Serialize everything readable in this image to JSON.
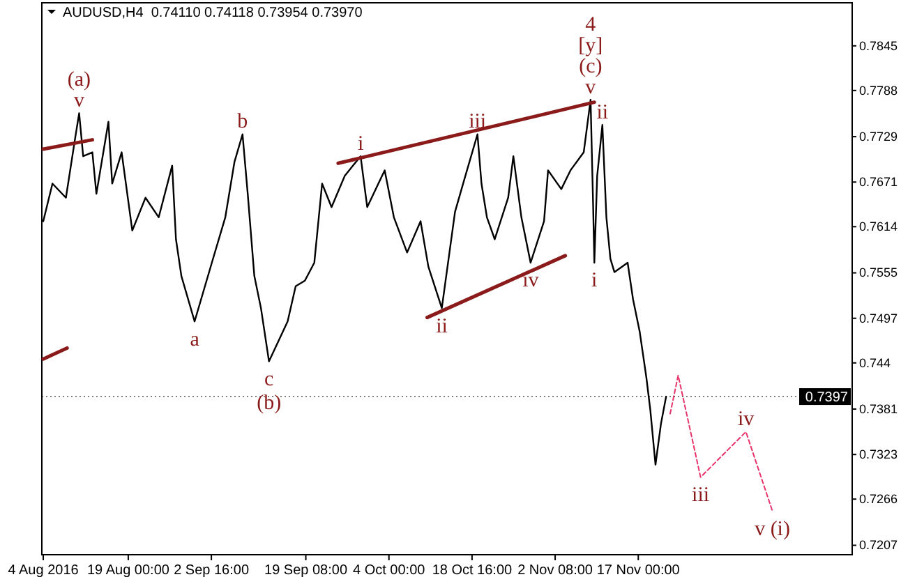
{
  "chart_data": {
    "type": "line",
    "title": "AUDUSD,H4  0.74110 0.74118 0.73954 0.73970",
    "xlim": [
      "2016-08-03T18:00",
      "2016-12-24T18:00"
    ],
    "xticks": [
      {
        "value": "2016-08-04T00:00",
        "label": "4 Aug 2016"
      },
      {
        "value": "2016-08-19T00:00",
        "label": "19 Aug 00:00"
      },
      {
        "value": "2016-09-02T16:00",
        "label": "2 Sep 16:00"
      },
      {
        "value": "2016-09-19T08:00",
        "label": "19 Sep 08:00"
      },
      {
        "value": "2016-10-04T00:00",
        "label": "4 Oct 00:00"
      },
      {
        "value": "2016-10-18T16:00",
        "label": "18 Oct 16:00"
      },
      {
        "value": "2016-11-02T08:00",
        "label": "2 Nov 08:00"
      },
      {
        "value": "2016-11-17T00:00",
        "label": "17 Nov 00:00"
      }
    ],
    "ylim": [
      0.7195,
      0.79
    ],
    "yticks": [
      0.7207,
      0.7266,
      0.7323,
      0.7381,
      0.744,
      0.7497,
      0.7555,
      0.7614,
      0.7671,
      0.7729,
      0.7788,
      0.7845
    ],
    "grid": false,
    "marker": "none",
    "ref_lines": [
      {
        "axis": "y",
        "value": 0.7397,
        "label": "0.7397",
        "color": "#000000",
        "line_style": "dotted"
      }
    ],
    "series": [
      {
        "color": "#000000",
        "x": [
          "2016-08-04T00:00",
          "2016-08-05T15:00",
          "2016-08-08T00:00",
          "2016-08-09T15:00",
          "2016-08-10T08:00",
          "2016-08-11T01:00",
          "2016-08-12T16:00",
          "2016-08-13T09:00",
          "2016-08-15T12:00",
          "2016-08-16T04:00",
          "2016-08-17T20:00",
          "2016-08-19T17:00",
          "2016-08-22T01:00",
          "2016-08-24T09:00",
          "2016-08-26T18:00",
          "2016-08-27T10:00",
          "2016-08-28T09:00",
          "2016-08-30T17:00",
          "2016-09-02T18:00",
          "2016-09-05T03:00",
          "2016-09-06T18:00",
          "2016-09-08T04:00",
          "2016-09-09T02:00",
          "2016-09-10T06:00",
          "2016-09-11T10:00",
          "2016-09-12T20:00",
          "2016-09-16T03:00",
          "2016-09-17T13:00",
          "2016-09-19T04:00",
          "2016-09-20T20:00",
          "2016-09-22T05:00",
          "2016-09-23T21:00",
          "2016-09-26T05:00",
          "2016-09-29T00:00",
          "2016-09-30T04:00",
          "2016-10-03T06:00",
          "2016-10-04T21:00",
          "2016-10-07T05:00",
          "2016-10-09T14:00",
          "2016-10-10T23:00",
          "2016-10-13T08:00",
          "2016-10-15T16:00",
          "2016-10-17T07:00",
          "2016-10-19T15:00",
          "2016-10-20T08:00",
          "2016-10-21T07:00",
          "2016-10-22T16:00",
          "2016-10-25T01:00",
          "2016-10-25T23:00",
          "2016-10-27T09:00",
          "2016-10-29T00:00",
          "2016-10-31T09:00",
          "2016-11-01T02:00",
          "2016-11-03T10:00",
          "2016-11-05T01:00",
          "2016-11-07T09:00",
          "2016-11-08T14:00",
          "2016-11-09T01:00",
          "2016-11-09T06:00",
          "2016-11-09T18:00",
          "2016-11-10T16:00",
          "2016-11-11T09:00",
          "2016-11-12T02:00",
          "2016-11-12T19:00",
          "2016-11-15T03:00",
          "2016-11-16T02:00",
          "2016-11-17T06:00",
          "2016-11-18T10:00",
          "2016-11-19T03:00",
          "2016-11-20T01:00",
          "2016-11-21T00:00",
          "2016-11-21T22:00"
        ],
        "values": [
          0.7621,
          0.7669,
          0.7651,
          0.7727,
          0.7759,
          0.7704,
          0.7709,
          0.7656,
          0.7748,
          0.7669,
          0.7709,
          0.7609,
          0.7651,
          0.7626,
          0.7692,
          0.7598,
          0.7551,
          0.7493,
          0.7568,
          0.7626,
          0.7697,
          0.7732,
          0.7656,
          0.7551,
          0.751,
          0.7442,
          0.7493,
          0.7538,
          0.7545,
          0.7568,
          0.7669,
          0.7639,
          0.7679,
          0.7704,
          0.7639,
          0.7686,
          0.7626,
          0.7581,
          0.7621,
          0.7563,
          0.751,
          0.7633,
          0.7674,
          0.7732,
          0.7669,
          0.7626,
          0.7598,
          0.7651,
          0.7704,
          0.7626,
          0.7568,
          0.7621,
          0.7686,
          0.7662,
          0.7686,
          0.7709,
          0.7776,
          0.7639,
          0.7568,
          0.7679,
          0.7744,
          0.7626,
          0.7573,
          0.7556,
          0.7568,
          0.7521,
          0.748,
          0.7422,
          0.738,
          0.731,
          0.7362,
          0.7397
        ]
      },
      {
        "color": "#8b1a1a",
        "x": [
          "2016-08-04T00:00",
          "2016-08-12T16:00"
        ],
        "values": [
          0.7713,
          0.7725
        ]
      },
      {
        "color": "#8b1a1a",
        "x": [
          "2016-08-04T00:00",
          "2016-08-08T05:00"
        ],
        "values": [
          0.7445,
          0.7459
        ]
      },
      {
        "color": "#8b1a1a",
        "x": [
          "2016-09-25T01:00",
          "2016-11-09T06:00"
        ],
        "values": [
          0.7695,
          0.7773
        ]
      },
      {
        "color": "#8b1a1a",
        "x": [
          "2016-10-10T18:00",
          "2016-11-04T03:00"
        ],
        "values": [
          0.7498,
          0.7577
        ]
      },
      {
        "color": "#e8336b",
        "line_style": "dashed",
        "x": [
          "2016-11-22T15:00",
          "2016-11-24T01:00",
          "2016-11-28T00:00",
          "2016-12-06T00:00",
          "2016-12-10T16:00"
        ],
        "values": [
          0.7375,
          0.7424,
          0.7294,
          0.7352,
          0.7251
        ]
      }
    ],
    "annotations": [
      {
        "text": "(a)",
        "x": "2016-08-10T08:00",
        "y": 0.7759
      },
      {
        "text": "v",
        "x": "2016-08-10T08:00",
        "y": 0.7759
      },
      {
        "text": "a",
        "x": "2016-08-30T17:00",
        "y": 0.7493
      },
      {
        "text": "b",
        "x": "2016-09-08T04:00",
        "y": 0.7732
      },
      {
        "text": "c",
        "x": "2016-09-12T20:00",
        "y": 0.7442
      },
      {
        "text": "(b)",
        "x": "2016-09-12T20:00",
        "y": 0.7442
      },
      {
        "text": "i",
        "x": "2016-09-29T00:00",
        "y": 0.7704
      },
      {
        "text": "ii",
        "x": "2016-10-13T08:00",
        "y": 0.751
      },
      {
        "text": "iii",
        "x": "2016-10-19T15:00",
        "y": 0.7732
      },
      {
        "text": "iv",
        "x": "2016-10-29T00:00",
        "y": 0.7568
      },
      "4",
      "[y]",
      {
        "text": "(c)",
        "x": "2016-11-08T14:00",
        "y": 0.7776
      },
      {
        "text": "v",
        "x": "2016-11-08T14:00",
        "y": 0.7776
      },
      {
        "text": "ii",
        "x": "2016-11-10T16:00",
        "y": 0.7744
      },
      {
        "text": "i",
        "x": "2016-11-09T06:00",
        "y": 0.7568
      },
      {
        "text": "iii",
        "x": "2016-11-28T00:00",
        "y": 0.7294
      },
      {
        "text": "iv",
        "x": "2016-12-06T00:00",
        "y": 0.7352
      },
      {
        "text": "v (i)",
        "x": "2016-12-10T16:00",
        "y": 0.7251
      }
    ]
  }
}
